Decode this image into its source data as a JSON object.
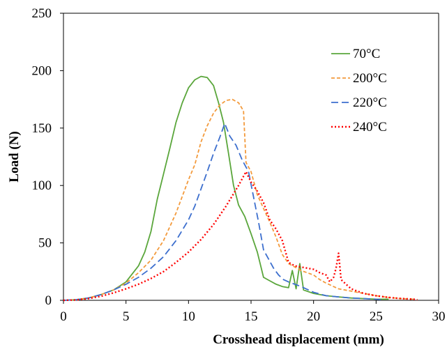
{
  "chart_data": {
    "type": "line",
    "title": "",
    "xlabel": "Crosshead displacement (mm)",
    "ylabel": "Load (N)",
    "xlim": [
      0,
      30
    ],
    "ylim": [
      0,
      250
    ],
    "xticks": [
      0,
      5,
      10,
      15,
      20,
      25,
      30
    ],
    "yticks": [
      0,
      50,
      100,
      150,
      200,
      250
    ],
    "grid": false,
    "legend_position": "top-right",
    "series": [
      {
        "name": "70°C",
        "color": "#5aa63b",
        "dash": "solid",
        "points": [
          [
            0,
            0
          ],
          [
            1,
            0.5
          ],
          [
            2,
            2
          ],
          [
            3,
            5
          ],
          [
            4,
            9
          ],
          [
            5,
            16
          ],
          [
            6,
            30
          ],
          [
            6.5,
            42
          ],
          [
            7,
            60
          ],
          [
            7.5,
            88
          ],
          [
            8,
            110
          ],
          [
            8.5,
            132
          ],
          [
            9,
            155
          ],
          [
            9.5,
            172
          ],
          [
            10,
            185
          ],
          [
            10.5,
            192
          ],
          [
            11,
            195
          ],
          [
            11.5,
            194
          ],
          [
            12,
            187
          ],
          [
            12.4,
            172
          ],
          [
            12.8,
            155
          ],
          [
            13.2,
            128
          ],
          [
            13.6,
            100
          ],
          [
            14,
            83
          ],
          [
            14.5,
            73
          ],
          [
            15,
            58
          ],
          [
            15.5,
            42
          ],
          [
            16,
            20
          ],
          [
            16.5,
            17
          ],
          [
            17,
            14
          ],
          [
            17.5,
            12
          ],
          [
            18,
            11
          ],
          [
            18.3,
            26
          ],
          [
            18.6,
            10
          ],
          [
            18.9,
            32
          ],
          [
            19.2,
            9
          ],
          [
            20,
            6
          ],
          [
            21,
            4
          ],
          [
            22,
            3
          ],
          [
            23,
            2
          ],
          [
            24,
            1.5
          ],
          [
            25,
            1
          ],
          [
            26,
            1
          ]
        ]
      },
      {
        "name": "200°C",
        "color": "#f39a3c",
        "dash": "5,3",
        "points": [
          [
            0,
            0
          ],
          [
            1,
            0.5
          ],
          [
            2,
            2
          ],
          [
            3,
            5
          ],
          [
            4,
            9
          ],
          [
            5,
            15
          ],
          [
            6,
            24
          ],
          [
            7,
            35
          ],
          [
            8,
            52
          ],
          [
            9,
            76
          ],
          [
            10,
            105
          ],
          [
            10.5,
            118
          ],
          [
            11,
            138
          ],
          [
            11.5,
            152
          ],
          [
            12,
            163
          ],
          [
            12.5,
            170
          ],
          [
            13,
            174
          ],
          [
            13.5,
            175
          ],
          [
            14,
            172
          ],
          [
            14.4,
            165
          ],
          [
            14.6,
            120
          ],
          [
            15,
            112
          ],
          [
            15.5,
            92
          ],
          [
            16,
            80
          ],
          [
            16.5,
            68
          ],
          [
            17,
            55
          ],
          [
            17.5,
            40
          ],
          [
            18,
            32
          ],
          [
            18.5,
            29
          ],
          [
            19,
            26
          ],
          [
            20,
            22
          ],
          [
            20.5,
            18
          ],
          [
            21,
            15
          ],
          [
            22,
            10
          ],
          [
            23,
            8
          ],
          [
            24,
            6
          ],
          [
            25,
            4
          ],
          [
            26,
            2.5
          ],
          [
            27,
            1.5
          ],
          [
            28,
            1
          ]
        ]
      },
      {
        "name": "220°C",
        "color": "#3d6fce",
        "dash": "10,5",
        "points": [
          [
            0,
            0
          ],
          [
            1,
            0.5
          ],
          [
            2,
            2
          ],
          [
            3,
            5
          ],
          [
            4,
            9
          ],
          [
            5,
            14
          ],
          [
            6,
            20
          ],
          [
            7,
            28
          ],
          [
            8,
            38
          ],
          [
            9,
            52
          ],
          [
            10,
            70
          ],
          [
            10.5,
            82
          ],
          [
            11,
            97
          ],
          [
            11.5,
            112
          ],
          [
            12,
            128
          ],
          [
            12.5,
            142
          ],
          [
            12.9,
            154
          ],
          [
            13.3,
            143
          ],
          [
            13.8,
            135
          ],
          [
            14.3,
            122
          ],
          [
            14.8,
            112
          ],
          [
            15.2,
            90
          ],
          [
            15.6,
            68
          ],
          [
            16,
            44
          ],
          [
            16.4,
            36
          ],
          [
            16.8,
            28
          ],
          [
            17.2,
            22
          ],
          [
            17.6,
            18
          ],
          [
            18,
            16
          ],
          [
            19,
            12
          ],
          [
            20,
            7
          ],
          [
            21,
            4
          ],
          [
            22,
            3
          ],
          [
            23,
            2
          ],
          [
            24,
            1.5
          ],
          [
            25,
            1
          ],
          [
            25.5,
            0.5
          ]
        ]
      },
      {
        "name": "240°C",
        "color": "#ff0000",
        "dash": "2,3",
        "points": [
          [
            0,
            0
          ],
          [
            1,
            0.3
          ],
          [
            2,
            1.5
          ],
          [
            3,
            3.5
          ],
          [
            4,
            6.5
          ],
          [
            5,
            10
          ],
          [
            6,
            14
          ],
          [
            7,
            19
          ],
          [
            8,
            25
          ],
          [
            9,
            33
          ],
          [
            10,
            42
          ],
          [
            11,
            53
          ],
          [
            12,
            66
          ],
          [
            13,
            82
          ],
          [
            14,
            100
          ],
          [
            14.6,
            112
          ],
          [
            15,
            103
          ],
          [
            15.5,
            95
          ],
          [
            16,
            85
          ],
          [
            16.5,
            70
          ],
          [
            17,
            62
          ],
          [
            17.5,
            52
          ],
          [
            18,
            33
          ],
          [
            18.5,
            30
          ],
          [
            19,
            29
          ],
          [
            19.5,
            28
          ],
          [
            20,
            27
          ],
          [
            20.5,
            24
          ],
          [
            21,
            22
          ],
          [
            21.3,
            16
          ],
          [
            21.6,
            20
          ],
          [
            21.8,
            28
          ],
          [
            22,
            41
          ],
          [
            22.2,
            18
          ],
          [
            23,
            10
          ],
          [
            24,
            6
          ],
          [
            25,
            4
          ],
          [
            26,
            2.5
          ],
          [
            27,
            1.5
          ],
          [
            28,
            1
          ],
          [
            28.3,
            0.5
          ]
        ]
      }
    ]
  }
}
